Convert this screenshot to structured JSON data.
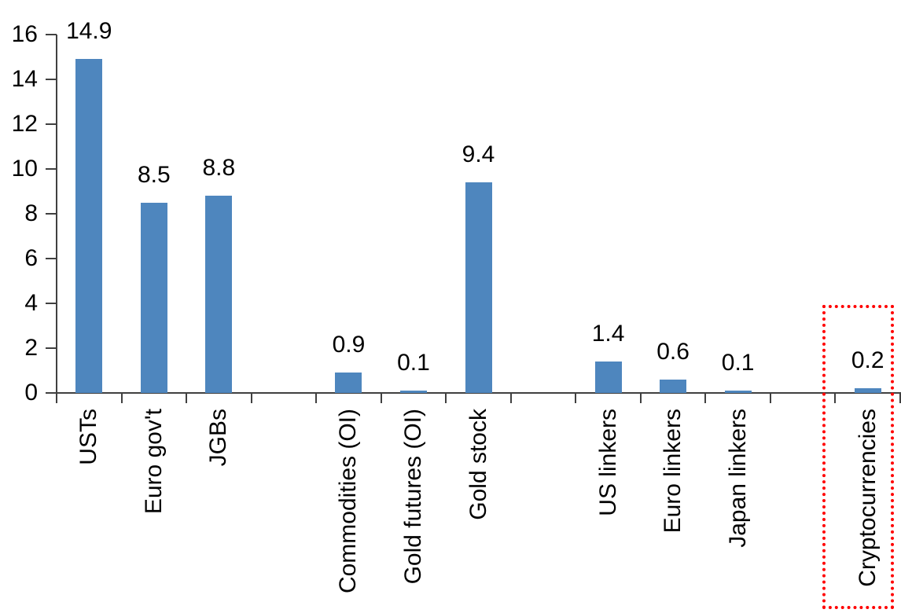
{
  "chart": {
    "background_color": "#ffffff",
    "bar_color": "#4e86be",
    "axis_color": "#404040",
    "text_color": "#000000",
    "highlight_box_color": "#ff0000"
  },
  "chart_data": {
    "type": "bar",
    "title": "",
    "xlabel": "",
    "ylabel": "",
    "categories": [
      "USTs",
      "Euro gov't",
      "JGBs",
      "",
      "Commodities (OI)",
      "Gold futures (OI)",
      "Gold stock",
      "",
      "US linkers",
      "Euro linkers",
      "Japan linkers",
      "",
      "Cryptocurrencies"
    ],
    "values": [
      14.9,
      8.5,
      8.8,
      null,
      0.9,
      0.1,
      9.4,
      null,
      1.4,
      0.6,
      0.1,
      null,
      0.2
    ],
    "value_labels": [
      "14.9",
      "8.5",
      "8.8",
      null,
      "0.9",
      "0.1",
      "9.4",
      null,
      "1.4",
      "0.6",
      "0.1",
      null,
      "0.2"
    ],
    "ylim": [
      0,
      16
    ],
    "yticks": [
      0,
      2,
      4,
      6,
      8,
      10,
      12,
      14,
      16
    ],
    "ytick_labels": [
      "0",
      "2",
      "4",
      "6",
      "8",
      "10",
      "12",
      "14",
      "16"
    ],
    "grid": "off",
    "legend": "none",
    "bar_label_position": "outside-end",
    "category_label_rotation_deg": 90,
    "highlight": {
      "category": "Cryptocurrencies",
      "slot_index": 12,
      "style": "red-dotted-rectangle"
    }
  }
}
